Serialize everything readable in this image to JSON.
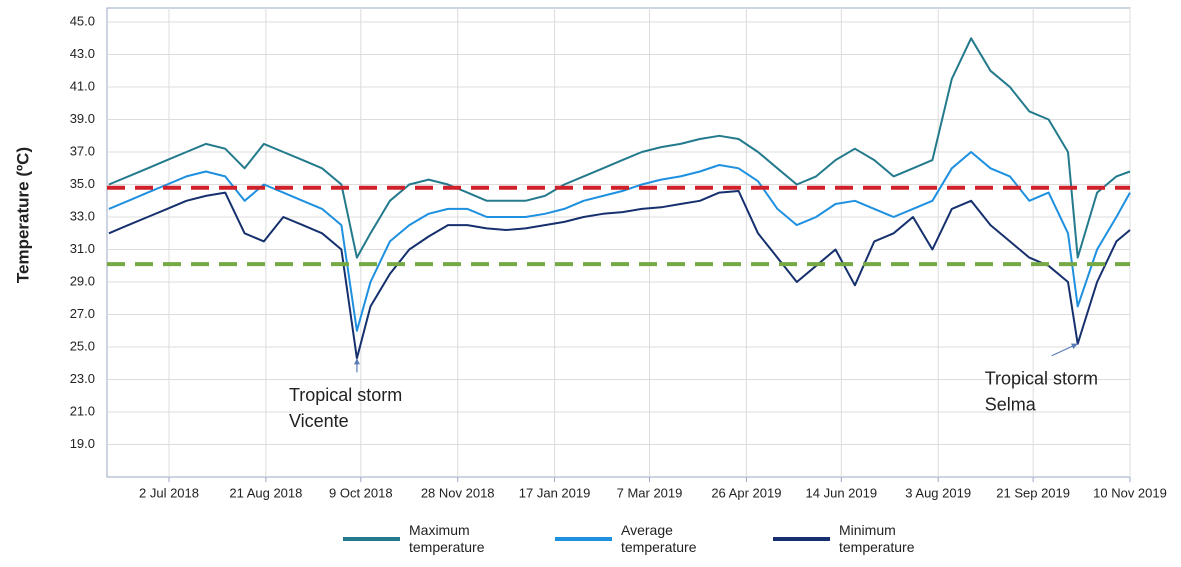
{
  "chart_data": {
    "type": "line",
    "y_label": "Temperature (ºC)",
    "x": [
      "2018-06-01",
      "2018-06-11",
      "2018-06-21",
      "2018-07-01",
      "2018-07-11",
      "2018-07-21",
      "2018-07-31",
      "2018-08-10",
      "2018-08-20",
      "2018-08-30",
      "2018-09-09",
      "2018-09-19",
      "2018-09-29",
      "2018-10-07",
      "2018-10-14",
      "2018-10-24",
      "2018-11-03",
      "2018-11-13",
      "2018-11-23",
      "2018-12-03",
      "2018-12-13",
      "2018-12-23",
      "2019-01-02",
      "2019-01-12",
      "2019-01-22",
      "2019-02-01",
      "2019-02-11",
      "2019-02-21",
      "2019-03-03",
      "2019-03-13",
      "2019-03-23",
      "2019-04-02",
      "2019-04-12",
      "2019-04-22",
      "2019-05-02",
      "2019-05-12",
      "2019-05-22",
      "2019-06-01",
      "2019-06-11",
      "2019-06-21",
      "2019-07-01",
      "2019-07-11",
      "2019-07-21",
      "2019-07-31",
      "2019-08-10",
      "2019-08-20",
      "2019-08-30",
      "2019-09-09",
      "2019-09-19",
      "2019-09-29",
      "2019-10-09",
      "2019-10-14",
      "2019-10-24",
      "2019-11-03",
      "2019-11-10"
    ],
    "series": [
      {
        "name": "Maximum temperature",
        "color": "#237a8c",
        "values": [
          35.0,
          35.5,
          36.0,
          36.5,
          37.0,
          37.5,
          37.2,
          36.0,
          37.5,
          37.0,
          36.5,
          36.0,
          35.0,
          30.5,
          32.0,
          34.0,
          35.0,
          35.3,
          35.0,
          34.5,
          34.0,
          34.0,
          34.0,
          34.3,
          35.0,
          35.5,
          36.0,
          36.5,
          37.0,
          37.3,
          37.5,
          37.8,
          38.0,
          37.8,
          37.0,
          36.0,
          35.0,
          35.5,
          36.5,
          37.2,
          36.5,
          35.5,
          36.0,
          36.5,
          41.5,
          44.0,
          42.0,
          41.0,
          39.5,
          39.0,
          37.0,
          30.5,
          34.5,
          35.5,
          35.8
        ]
      },
      {
        "name": "Average temperature",
        "color": "#1e90e0",
        "values": [
          33.5,
          34.0,
          34.5,
          35.0,
          35.5,
          35.8,
          35.5,
          34.0,
          35.0,
          34.5,
          34.0,
          33.5,
          32.5,
          26.0,
          29.0,
          31.5,
          32.5,
          33.2,
          33.5,
          33.5,
          33.0,
          33.0,
          33.0,
          33.2,
          33.5,
          34.0,
          34.3,
          34.6,
          35.0,
          35.3,
          35.5,
          35.8,
          36.2,
          36.0,
          35.2,
          33.5,
          32.5,
          33.0,
          33.8,
          34.0,
          33.5,
          33.0,
          33.5,
          34.0,
          36.0,
          37.0,
          36.0,
          35.5,
          34.0,
          34.5,
          32.0,
          27.5,
          31.0,
          33.0,
          34.5
        ]
      },
      {
        "name": "Minimum temperature",
        "color": "#16306e",
        "values": [
          32.0,
          32.5,
          33.0,
          33.5,
          34.0,
          34.3,
          34.5,
          32.0,
          31.5,
          33.0,
          32.5,
          32.0,
          31.0,
          24.3,
          27.5,
          29.5,
          31.0,
          31.8,
          32.5,
          32.5,
          32.3,
          32.2,
          32.3,
          32.5,
          32.7,
          33.0,
          33.2,
          33.3,
          33.5,
          33.6,
          33.8,
          34.0,
          34.5,
          34.6,
          32.0,
          30.5,
          29.0,
          30.0,
          31.0,
          28.8,
          31.5,
          32.0,
          33.0,
          31.0,
          33.5,
          34.0,
          32.5,
          31.5,
          30.5,
          30.0,
          29.0,
          25.2,
          29.0,
          31.5,
          32.2
        ]
      }
    ],
    "reference_lines": [
      {
        "value": 34.8,
        "color": "#d0202a"
      },
      {
        "value": 30.1,
        "color": "#76a844"
      }
    ],
    "annotations": [
      {
        "lines": [
          "Tropical storm",
          "Vicente"
        ],
        "x": "2018-10-07",
        "y": 24.3
      },
      {
        "lines": [
          "Tropical storm",
          "Selma"
        ],
        "x": "2019-10-14",
        "y": 25.2
      }
    ],
    "xlim": [
      "2018-05-31",
      "2019-11-10"
    ],
    "xticks": [
      {
        "value": "2018-07-02",
        "label": "2 Jul 2018"
      },
      {
        "value": "2018-08-21",
        "label": "21 Aug 2018"
      },
      {
        "value": "2018-10-09",
        "label": "9 Oct 2018"
      },
      {
        "value": "2018-11-28",
        "label": "28 Nov 2018"
      },
      {
        "value": "2019-01-17",
        "label": "17 Jan 2019"
      },
      {
        "value": "2019-03-07",
        "label": "7 Mar 2019"
      },
      {
        "value": "2019-04-26",
        "label": "26 Apr 2019"
      },
      {
        "value": "2019-06-14",
        "label": "14 Jun 2019"
      },
      {
        "value": "2019-08-03",
        "label": "3 Aug 2019"
      },
      {
        "value": "2019-09-21",
        "label": "21 Sep 2019"
      },
      {
        "value": "2019-11-10",
        "label": "10 Nov 2019"
      }
    ],
    "ylim": [
      17,
      45
    ],
    "yticks": [
      {
        "value": 19,
        "label": "19.0"
      },
      {
        "value": 21,
        "label": "21.0"
      },
      {
        "value": 23,
        "label": "23.0"
      },
      {
        "value": 25,
        "label": "25.0"
      },
      {
        "value": 27,
        "label": "27.0"
      },
      {
        "value": 29,
        "label": "29.0"
      },
      {
        "value": 31,
        "label": "31.0"
      },
      {
        "value": 33,
        "label": "33.0"
      },
      {
        "value": 35,
        "label": "35.0"
      },
      {
        "value": 37,
        "label": "37.0"
      },
      {
        "value": 39,
        "label": "39.0"
      },
      {
        "value": 41,
        "label": "41.0"
      },
      {
        "value": 43,
        "label": "43.0"
      },
      {
        "value": 45,
        "label": "45.0"
      }
    ],
    "grid": true,
    "legend": "bottom"
  }
}
